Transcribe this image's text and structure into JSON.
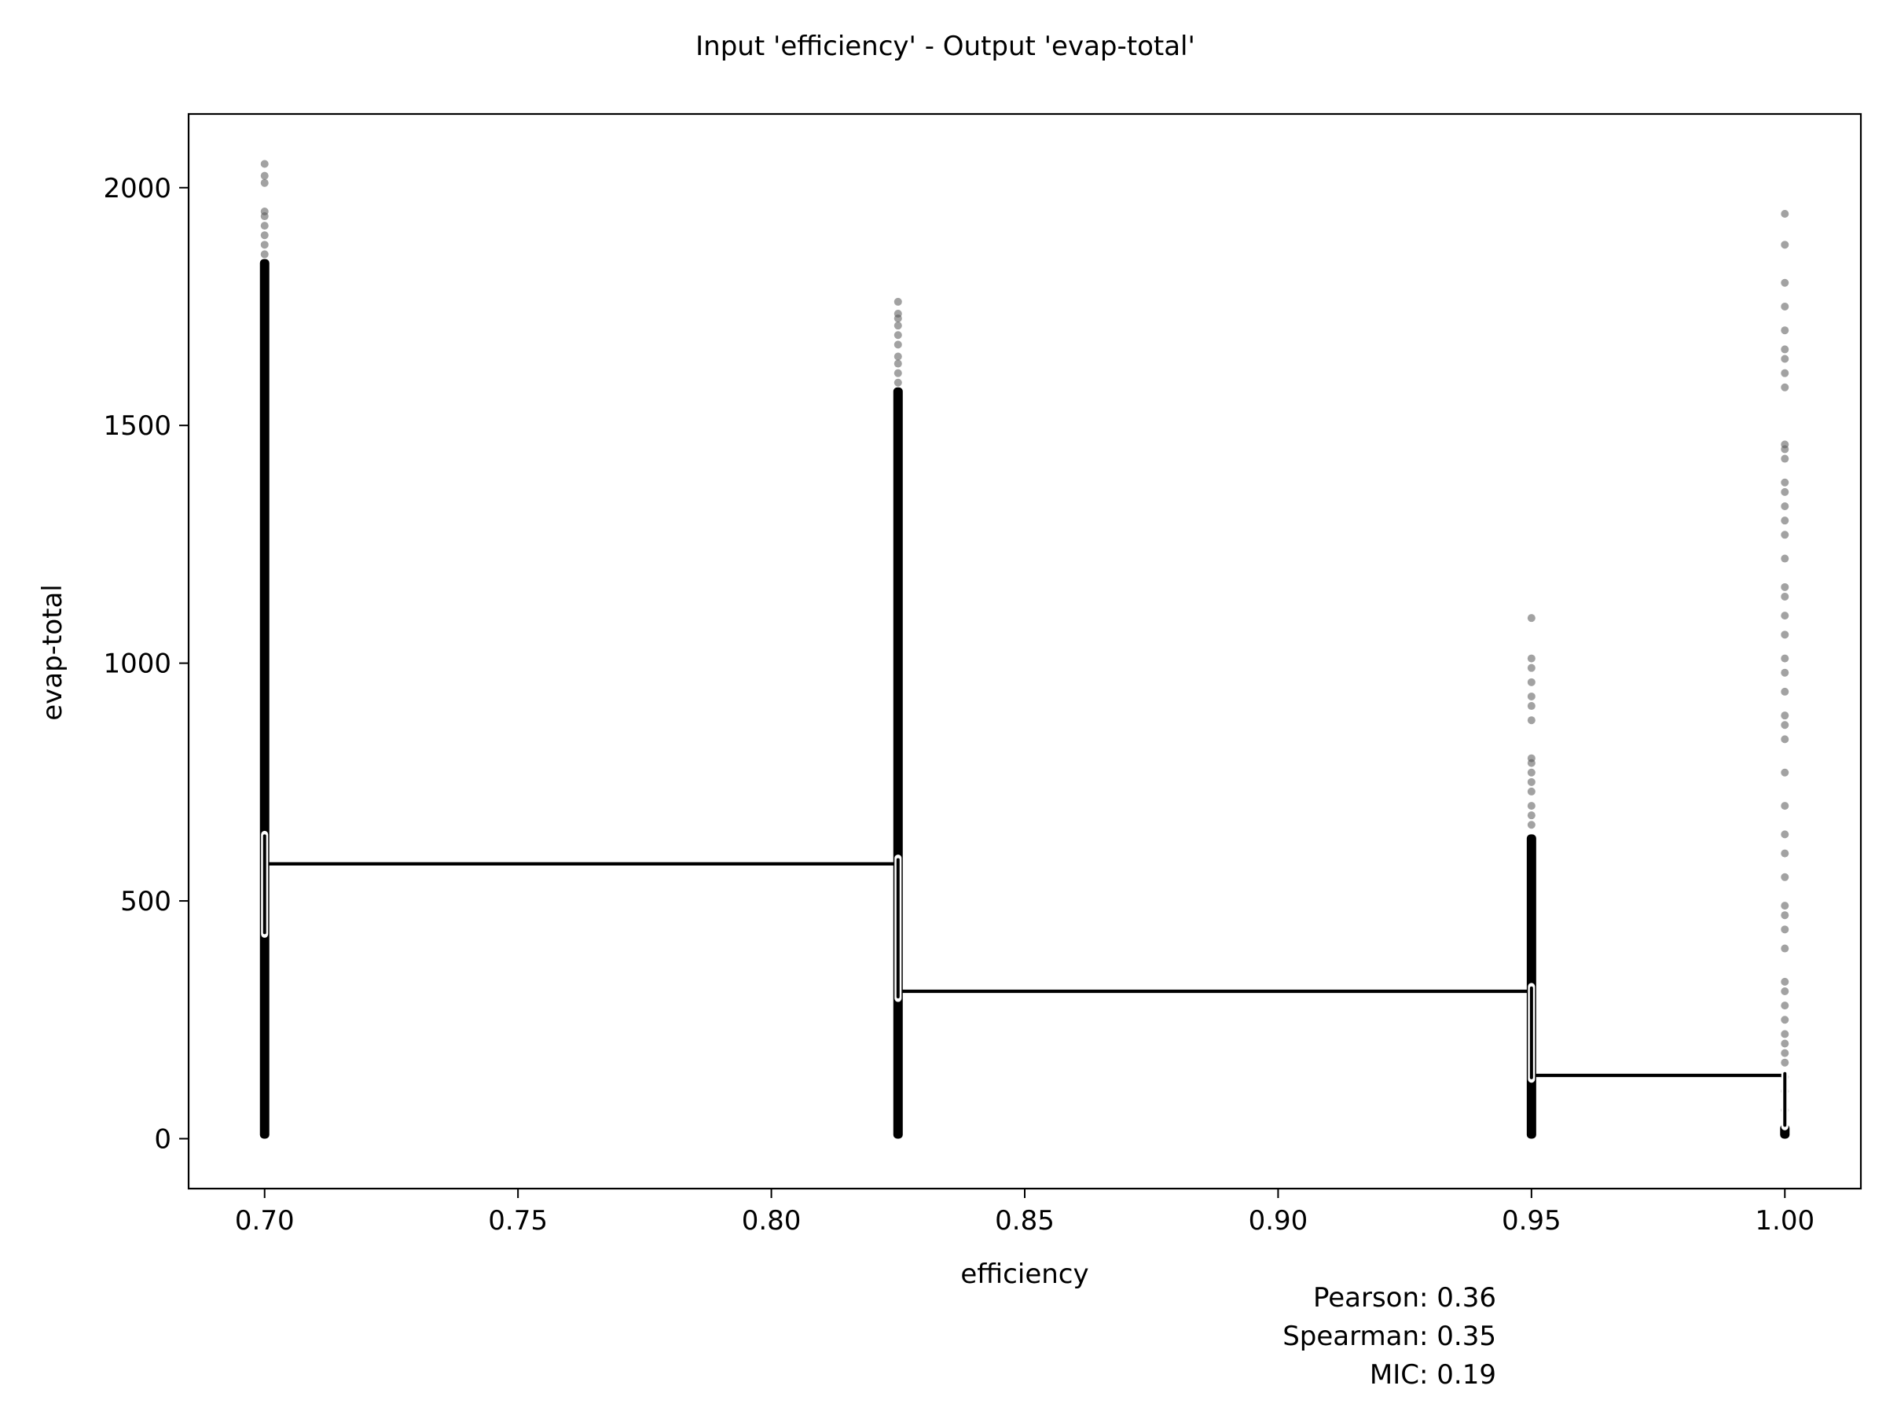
{
  "chart_data": {
    "type": "scatter",
    "title": "Input 'efficiency' - Output 'evap-total'",
    "xlabel": "efficiency",
    "ylabel": "evap-total",
    "xlim": [
      0.685,
      1.015
    ],
    "ylim": [
      -105,
      2155
    ],
    "xticks": [
      0.7,
      0.75,
      0.8,
      0.85,
      0.9,
      0.95,
      1.0
    ],
    "xtick_labels": [
      "0.70",
      "0.75",
      "0.80",
      "0.85",
      "0.90",
      "0.95",
      "1.00"
    ],
    "yticks": [
      0,
      500,
      1000,
      1500,
      2000
    ],
    "ytick_labels": [
      "0",
      "500",
      "1000",
      "1500",
      "2000"
    ],
    "grid": false,
    "point_color": "#555555",
    "line_color": "#000000",
    "columns": [
      {
        "x": 0.7,
        "dense_range": [
          0,
          1850
        ],
        "outliers": [
          1860,
          1880,
          1900,
          1920,
          1940,
          1950,
          2010,
          2025,
          2050
        ]
      },
      {
        "x": 0.825,
        "dense_range": [
          0,
          1580
        ],
        "outliers": [
          1590,
          1610,
          1630,
          1645,
          1670,
          1690,
          1710,
          1725,
          1735,
          1760
        ]
      },
      {
        "x": 0.95,
        "dense_range": [
          0,
          640
        ],
        "outliers": [
          660,
          680,
          700,
          730,
          750,
          770,
          790,
          800,
          880,
          910,
          930,
          960,
          990,
          1010,
          1095
        ]
      },
      {
        "x": 1.0,
        "dense_range": [
          0,
          30
        ],
        "outliers": [
          60,
          100,
          130,
          160,
          180,
          200,
          220,
          250,
          280,
          310,
          330,
          400,
          440,
          470,
          490,
          550,
          600,
          640,
          700,
          770,
          840,
          870,
          890,
          940,
          980,
          1010,
          1060,
          1100,
          1140,
          1160,
          1220,
          1270,
          1300,
          1330,
          1360,
          1380,
          1430,
          1450,
          1460,
          1580,
          1610,
          1640,
          1660,
          1700,
          1750,
          1800,
          1880,
          1945
        ]
      }
    ],
    "step_line": {
      "x": [
        0.7,
        0.825,
        0.825,
        0.95,
        0.95,
        1.0,
        1.0
      ],
      "y": [
        578,
        578,
        310,
        310,
        133,
        133,
        40
      ]
    },
    "median_markers": [
      {
        "x": 0.7,
        "y_range": [
          430,
          640
        ]
      },
      {
        "x": 0.825,
        "y_range": [
          295,
          590
        ]
      },
      {
        "x": 0.95,
        "y_range": [
          125,
          320
        ]
      },
      {
        "x": 1.0,
        "y_range": [
          25,
          140
        ]
      }
    ],
    "annotations": [
      "Pearson: 0.36",
      "Spearman: 0.35",
      "MIC: 0.19"
    ]
  }
}
